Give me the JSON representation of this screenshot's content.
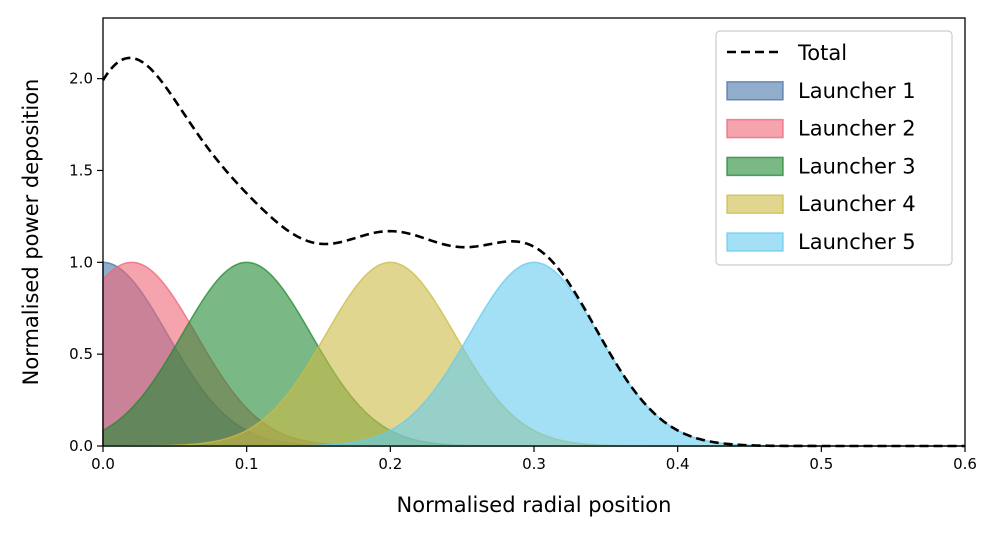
{
  "chart_data": {
    "type": "area",
    "xlabel": "Normalised radial position",
    "ylabel": "Normalised power deposition",
    "xlim": [
      0.0,
      0.6
    ],
    "ylim": [
      0.0,
      2.33
    ],
    "x_ticks": [
      "0.0",
      "0.1",
      "0.2",
      "0.3",
      "0.4",
      "0.5",
      "0.6"
    ],
    "y_ticks": [
      "0.0",
      "0.5",
      "1.0",
      "1.5",
      "2.0"
    ],
    "grid": false,
    "legend_position": "top-right",
    "series": [
      {
        "name": "Total",
        "style": "dashed-line",
        "color": "#000000"
      },
      {
        "name": "Launcher 1",
        "center": 0.0,
        "width": 0.045,
        "peak": 1.0,
        "color": "#4a74a9"
      },
      {
        "name": "Launcher 2",
        "center": 0.02,
        "width": 0.045,
        "peak": 1.0,
        "color": "#ee6677"
      },
      {
        "name": "Launcher 3",
        "center": 0.1,
        "width": 0.045,
        "peak": 1.0,
        "color": "#228833"
      },
      {
        "name": "Launcher 4",
        "center": 0.2,
        "width": 0.045,
        "peak": 1.0,
        "color": "#ccbb44"
      },
      {
        "name": "Launcher 5",
        "center": 0.3,
        "width": 0.045,
        "peak": 1.0,
        "color": "#66ccee"
      }
    ]
  }
}
